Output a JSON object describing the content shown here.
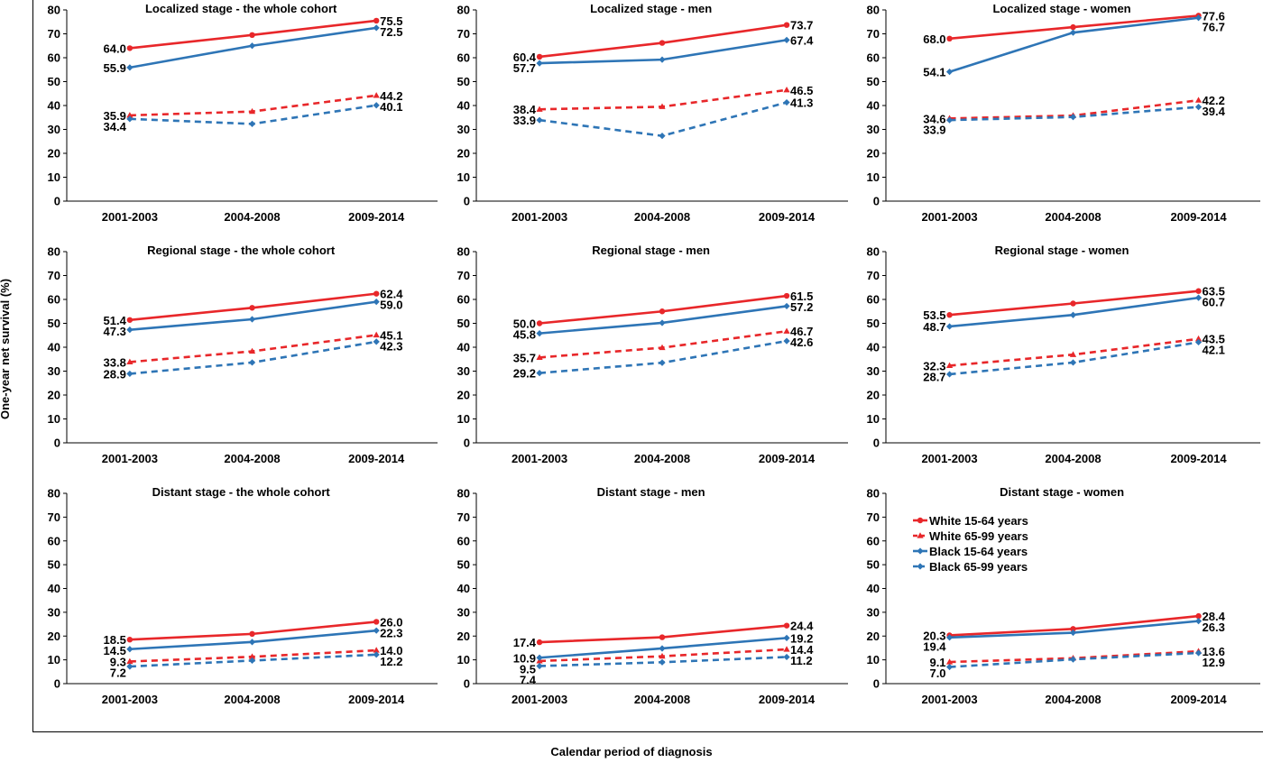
{
  "figure": {
    "ylabel": "One-year net survival (%)",
    "xlabel": "Calendar period of diagnosis"
  },
  "colors": {
    "white": "#E8272A",
    "black": "#2E75B6"
  },
  "legend": {
    "location": "top-left of panel 'Distant stage - women'",
    "entries": [
      "White 15-64 years",
      "White 65-99 years",
      "Black 15-64 years",
      "Black 65-99 years"
    ]
  },
  "chart_data": [
    {
      "type": "line",
      "title": "Localized stage - the whole cohort",
      "categories": [
        "2001-2003",
        "2004-2008",
        "2009-2014"
      ],
      "ylim": [
        0,
        80
      ],
      "yticks": [
        0,
        10,
        20,
        30,
        40,
        50,
        60,
        70,
        80
      ],
      "series": [
        {
          "name": "White 15-64 years",
          "values": [
            64.0,
            69.5,
            75.5
          ],
          "labels": [
            "64.0",
            null,
            "75.5"
          ]
        },
        {
          "name": "White 65-99 years",
          "values": [
            35.9,
            37.5,
            44.2
          ],
          "labels": [
            "35.9",
            null,
            "44.2"
          ]
        },
        {
          "name": "Black 15-64 years",
          "values": [
            55.9,
            65.0,
            72.5
          ],
          "labels": [
            "55.9",
            null,
            "72.5"
          ]
        },
        {
          "name": "Black 65-99 years",
          "values": [
            34.4,
            32.3,
            40.1
          ],
          "labels": [
            "34.4",
            null,
            "40.1"
          ]
        }
      ]
    },
    {
      "type": "line",
      "title": "Localized stage - men",
      "categories": [
        "2001-2003",
        "2004-2008",
        "2009-2014"
      ],
      "ylim": [
        0,
        80
      ],
      "yticks": [
        0,
        10,
        20,
        30,
        40,
        50,
        60,
        70,
        80
      ],
      "series": [
        {
          "name": "White 15-64 years",
          "values": [
            60.4,
            66.2,
            73.7
          ],
          "labels": [
            "60.4",
            null,
            "73.7"
          ]
        },
        {
          "name": "White 65-99 years",
          "values": [
            38.4,
            39.5,
            46.5
          ],
          "labels": [
            "38.4",
            null,
            "46.5"
          ]
        },
        {
          "name": "Black 15-64 years",
          "values": [
            57.7,
            59.2,
            67.4
          ],
          "labels": [
            "57.7",
            null,
            "67.4"
          ]
        },
        {
          "name": "Black 65-99 years",
          "values": [
            33.9,
            27.3,
            41.3
          ],
          "labels": [
            "33.9",
            null,
            "41.3"
          ]
        }
      ]
    },
    {
      "type": "line",
      "title": "Localized stage - women",
      "categories": [
        "2001-2003",
        "2004-2008",
        "2009-2014"
      ],
      "ylim": [
        0,
        80
      ],
      "yticks": [
        0,
        10,
        20,
        30,
        40,
        50,
        60,
        70,
        80
      ],
      "series": [
        {
          "name": "White 15-64 years",
          "values": [
            68.0,
            72.8,
            77.6
          ],
          "labels": [
            "68.0",
            null,
            "77.6"
          ]
        },
        {
          "name": "White 65-99 years",
          "values": [
            34.6,
            35.8,
            42.2
          ],
          "labels": [
            "34.6",
            null,
            "42.2"
          ]
        },
        {
          "name": "Black 15-64 years",
          "values": [
            54.1,
            70.5,
            76.7
          ],
          "labels": [
            "54.1",
            null,
            "76.7"
          ]
        },
        {
          "name": "Black 65-99 years",
          "values": [
            33.9,
            35.2,
            39.4
          ],
          "labels": [
            "33.9",
            null,
            "39.4"
          ]
        }
      ]
    },
    {
      "type": "line",
      "title": "Regional stage - the whole cohort",
      "categories": [
        "2001-2003",
        "2004-2008",
        "2009-2014"
      ],
      "ylim": [
        0,
        80
      ],
      "yticks": [
        0,
        10,
        20,
        30,
        40,
        50,
        60,
        70,
        80
      ],
      "series": [
        {
          "name": "White 15-64 years",
          "values": [
            51.4,
            56.5,
            62.4
          ],
          "labels": [
            "51.4",
            null,
            "62.4"
          ]
        },
        {
          "name": "White 65-99 years",
          "values": [
            33.8,
            38.3,
            45.1
          ],
          "labels": [
            "33.8",
            null,
            "45.1"
          ]
        },
        {
          "name": "Black 15-64 years",
          "values": [
            47.3,
            51.7,
            59.0
          ],
          "labels": [
            "47.3",
            null,
            "59.0"
          ]
        },
        {
          "name": "Black 65-99 years",
          "values": [
            28.9,
            33.6,
            42.3
          ],
          "labels": [
            "28.9",
            null,
            "42.3"
          ]
        }
      ]
    },
    {
      "type": "line",
      "title": "Regional stage - men",
      "categories": [
        "2001-2003",
        "2004-2008",
        "2009-2014"
      ],
      "ylim": [
        0,
        80
      ],
      "yticks": [
        0,
        10,
        20,
        30,
        40,
        50,
        60,
        70,
        80
      ],
      "series": [
        {
          "name": "White 15-64 years",
          "values": [
            50.0,
            55.0,
            61.5
          ],
          "labels": [
            "50.0",
            null,
            "61.5"
          ]
        },
        {
          "name": "White 65-99 years",
          "values": [
            35.7,
            39.8,
            46.7
          ],
          "labels": [
            "35.7",
            null,
            "46.7"
          ]
        },
        {
          "name": "Black 15-64 years",
          "values": [
            45.8,
            50.2,
            57.2
          ],
          "labels": [
            "45.8",
            null,
            "57.2"
          ]
        },
        {
          "name": "Black 65-99 years",
          "values": [
            29.2,
            33.5,
            42.6
          ],
          "labels": [
            "29.2",
            null,
            "42.6"
          ]
        }
      ]
    },
    {
      "type": "line",
      "title": "Regional stage - women",
      "categories": [
        "2001-2003",
        "2004-2008",
        "2009-2014"
      ],
      "ylim": [
        0,
        80
      ],
      "yticks": [
        0,
        10,
        20,
        30,
        40,
        50,
        60,
        70,
        80
      ],
      "series": [
        {
          "name": "White 15-64 years",
          "values": [
            53.5,
            58.3,
            63.5
          ],
          "labels": [
            "53.5",
            null,
            "63.5"
          ]
        },
        {
          "name": "White 65-99 years",
          "values": [
            32.3,
            36.9,
            43.5
          ],
          "labels": [
            "32.3",
            null,
            "43.5"
          ]
        },
        {
          "name": "Black 15-64 years",
          "values": [
            48.7,
            53.5,
            60.7
          ],
          "labels": [
            "48.7",
            null,
            "60.7"
          ]
        },
        {
          "name": "Black 65-99 years",
          "values": [
            28.7,
            33.6,
            42.1
          ],
          "labels": [
            "28.7",
            null,
            "42.1"
          ]
        }
      ]
    },
    {
      "type": "line",
      "title": "Distant stage - the whole cohort",
      "categories": [
        "2001-2003",
        "2004-2008",
        "2009-2014"
      ],
      "ylim": [
        0,
        80
      ],
      "yticks": [
        0,
        10,
        20,
        30,
        40,
        50,
        60,
        70,
        80
      ],
      "series": [
        {
          "name": "White 15-64 years",
          "values": [
            18.5,
            20.9,
            26.0
          ],
          "labels": [
            "18.5",
            null,
            "26.0"
          ]
        },
        {
          "name": "White 65-99 years",
          "values": [
            9.3,
            11.3,
            14.0
          ],
          "labels": [
            "9.3",
            null,
            "14.0"
          ]
        },
        {
          "name": "Black 15-64 years",
          "values": [
            14.5,
            17.5,
            22.3
          ],
          "labels": [
            "14.5",
            null,
            "22.3"
          ]
        },
        {
          "name": "Black 65-99 years",
          "values": [
            7.2,
            9.7,
            12.2
          ],
          "labels": [
            "7.2",
            null,
            "12.2"
          ]
        }
      ]
    },
    {
      "type": "line",
      "title": "Distant stage - men",
      "categories": [
        "2001-2003",
        "2004-2008",
        "2009-2014"
      ],
      "ylim": [
        0,
        80
      ],
      "yticks": [
        0,
        10,
        20,
        30,
        40,
        50,
        60,
        70,
        80
      ],
      "series": [
        {
          "name": "White 15-64 years",
          "values": [
            17.4,
            19.5,
            24.4
          ],
          "labels": [
            "17.4",
            null,
            "24.4"
          ]
        },
        {
          "name": "White 65-99 years",
          "values": [
            9.5,
            11.5,
            14.4
          ],
          "labels": [
            "9.5",
            null,
            "14.4"
          ]
        },
        {
          "name": "Black 15-64 years",
          "values": [
            10.9,
            14.8,
            19.2
          ],
          "labels": [
            "10.9",
            null,
            "19.2"
          ]
        },
        {
          "name": "Black 65-99 years",
          "values": [
            7.4,
            9.0,
            11.2
          ],
          "labels": [
            "7.4",
            null,
            "11.2"
          ]
        }
      ]
    },
    {
      "type": "line",
      "title": "Distant stage - women",
      "categories": [
        "2001-2003",
        "2004-2008",
        "2009-2014"
      ],
      "ylim": [
        0,
        80
      ],
      "yticks": [
        0,
        10,
        20,
        30,
        40,
        50,
        60,
        70,
        80
      ],
      "series": [
        {
          "name": "White 15-64 years",
          "values": [
            20.3,
            23.0,
            28.4
          ],
          "labels": [
            "20.3",
            null,
            "28.4"
          ]
        },
        {
          "name": "White 65-99 years",
          "values": [
            9.1,
            10.7,
            13.6
          ],
          "labels": [
            "9.1",
            null,
            "13.6"
          ]
        },
        {
          "name": "Black 15-64 years",
          "values": [
            19.4,
            21.4,
            26.3
          ],
          "labels": [
            "19.4",
            null,
            "26.3"
          ]
        },
        {
          "name": "Black 65-99 years",
          "values": [
            7.0,
            10.2,
            12.9
          ],
          "labels": [
            "7.0",
            null,
            "12.9"
          ]
        }
      ]
    }
  ]
}
